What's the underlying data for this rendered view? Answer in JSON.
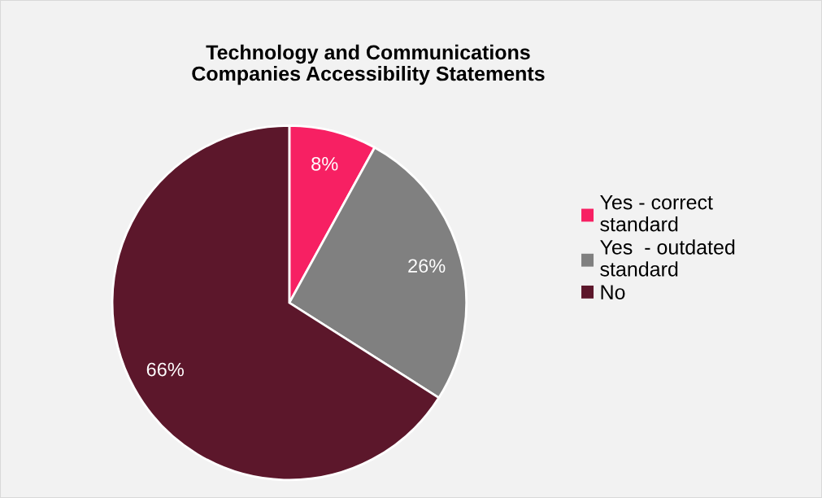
{
  "chart_data": {
    "type": "pie",
    "title": "Technology and Communications\nCompanies Accessibility Statements",
    "categories": [
      "Yes - correct standard",
      "Yes  - outdated standard",
      "No"
    ],
    "values": [
      8,
      26,
      66
    ],
    "colors": [
      "#f72063",
      "#808080",
      "#5c172b"
    ],
    "value_labels": [
      "8%",
      "26%",
      "66%"
    ],
    "legend": "right"
  }
}
